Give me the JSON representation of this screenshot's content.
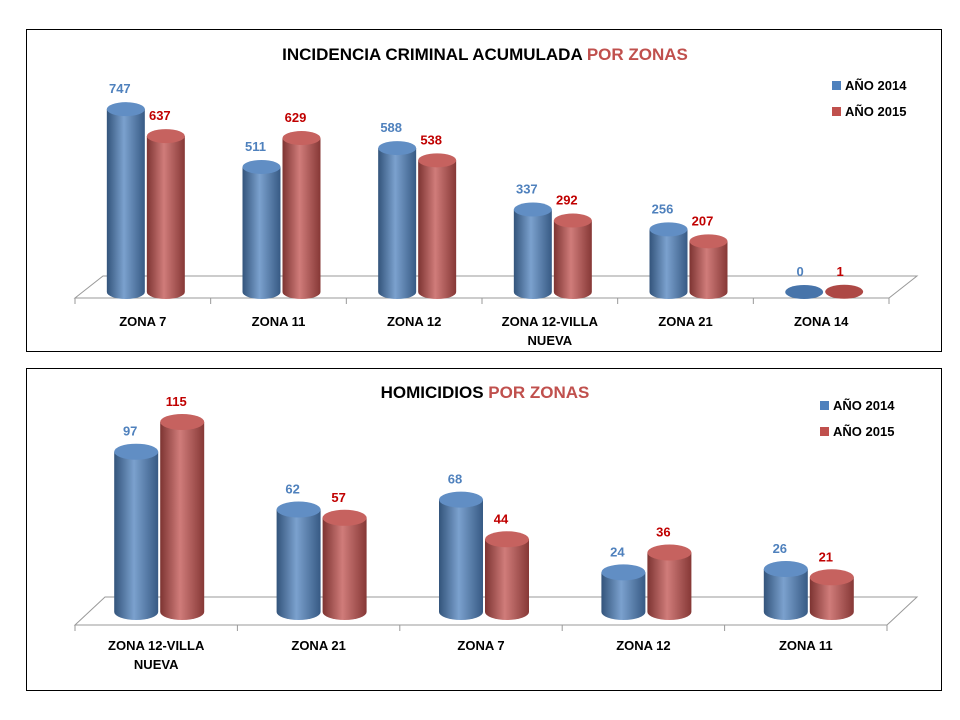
{
  "colors": {
    "series_2014": "#4f81bd",
    "series_2015": "#c0504d",
    "label_2014": "#4f81bd",
    "label_2015": "#c00000",
    "title_highlight": "#c0504d"
  },
  "chart_data": [
    {
      "type": "bar",
      "title": "INCIDENCIA CRIMINAL ACUMULADA",
      "title_highlight": "POR ZONAS",
      "categories": [
        [
          "ZONA 7"
        ],
        [
          "ZONA 11"
        ],
        [
          "ZONA 12"
        ],
        [
          "ZONA 12-VILLA",
          "NUEVA"
        ],
        [
          "ZONA 21"
        ],
        [
          "ZONA 14"
        ]
      ],
      "series": [
        {
          "name": "AÑO 2014",
          "values": [
            747,
            511,
            588,
            337,
            256,
            0
          ]
        },
        {
          "name": "AÑO 2015",
          "values": [
            637,
            629,
            538,
            292,
            207,
            1
          ]
        }
      ],
      "ylim": [
        0,
        760
      ],
      "legend": "top-right",
      "grid": false
    },
    {
      "type": "bar",
      "title": "HOMICIDIOS",
      "title_highlight": "POR ZONAS",
      "categories": [
        [
          "ZONA 12-VILLA",
          "NUEVA"
        ],
        [
          "ZONA 21"
        ],
        [
          "ZONA 7"
        ],
        [
          "ZONA 12"
        ],
        [
          "ZONA 11"
        ]
      ],
      "series": [
        {
          "name": "AÑO 2014",
          "values": [
            97,
            62,
            68,
            24,
            26
          ]
        },
        {
          "name": "AÑO 2015",
          "values": [
            115,
            57,
            44,
            36,
            21
          ]
        }
      ],
      "ylim": [
        0,
        118
      ],
      "legend": "top-right",
      "grid": false
    }
  ]
}
